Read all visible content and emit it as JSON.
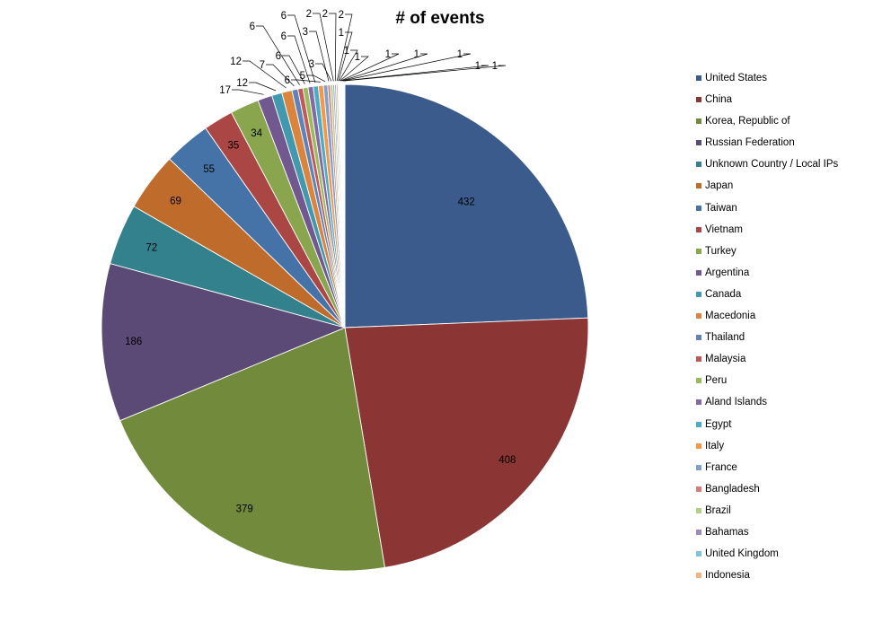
{
  "chart_data": {
    "type": "pie",
    "title": "# of events",
    "slices": [
      {
        "label": "United States",
        "value": 432,
        "color": "#3b5b8c"
      },
      {
        "label": "China",
        "value": 408,
        "color": "#8b3634"
      },
      {
        "label": "Korea, Republic of",
        "value": 379,
        "color": "#718a3b"
      },
      {
        "label": "Russian Federation",
        "value": 186,
        "color": "#5c4a76"
      },
      {
        "label": "Unknown Country / Local IPs",
        "value": 72,
        "color": "#34818e"
      },
      {
        "label": "Japan",
        "value": 69,
        "color": "#bf6b2c"
      },
      {
        "label": "Taiwan",
        "value": 55,
        "color": "#4572a7"
      },
      {
        "label": "Vietnam",
        "value": 35,
        "color": "#aa4643"
      },
      {
        "label": "Turkey",
        "value": 34,
        "color": "#89a54e"
      },
      {
        "label": "Argentina",
        "value": 17,
        "color": "#71588f"
      },
      {
        "label": "Canada",
        "value": 12,
        "color": "#4198af"
      },
      {
        "label": "Macedonia",
        "value": 12,
        "color": "#db843d"
      },
      {
        "label": "Thailand",
        "value": 7,
        "color": "#5d83b8"
      },
      {
        "label": "Malaysia",
        "value": 6,
        "color": "#c05a58"
      },
      {
        "label": "Peru",
        "value": 6,
        "color": "#9cbb5c"
      },
      {
        "label": "Aland Islands",
        "value": 6,
        "color": "#8469a6"
      },
      {
        "label": "Egypt",
        "value": 6,
        "color": "#4bacc6"
      },
      {
        "label": "Italy",
        "value": 6,
        "color": "#f79646"
      },
      {
        "label": "France",
        "value": 5,
        "color": "#7f9fcc"
      },
      {
        "label": "Bangladesh",
        "value": 3,
        "color": "#d47d7b"
      },
      {
        "label": "Brazil",
        "value": 3,
        "color": "#b3cd8a"
      },
      {
        "label": "Bahamas",
        "value": 2,
        "color": "#9e8bbd"
      },
      {
        "label": "United Kingdom",
        "value": 2,
        "color": "#7fc4d6"
      },
      {
        "label": "Indonesia",
        "value": 2,
        "color": "#f9b07f"
      },
      {
        "label": "",
        "value": 1,
        "color": "#a9bbd8"
      },
      {
        "label": "",
        "value": 1,
        "color": "#d9a5a4"
      },
      {
        "label": "",
        "value": 1,
        "color": "#c6d9a8"
      },
      {
        "label": "",
        "value": 1,
        "color": "#b9acd0"
      },
      {
        "label": "",
        "value": 1,
        "color": "#a8d6e3"
      },
      {
        "label": "",
        "value": 1,
        "color": "#fbcba6"
      },
      {
        "label": "",
        "value": 1,
        "color": "#c9d5e8"
      },
      {
        "label": "",
        "value": 1,
        "color": "#e6c6c5"
      }
    ],
    "legend_position": "right"
  }
}
